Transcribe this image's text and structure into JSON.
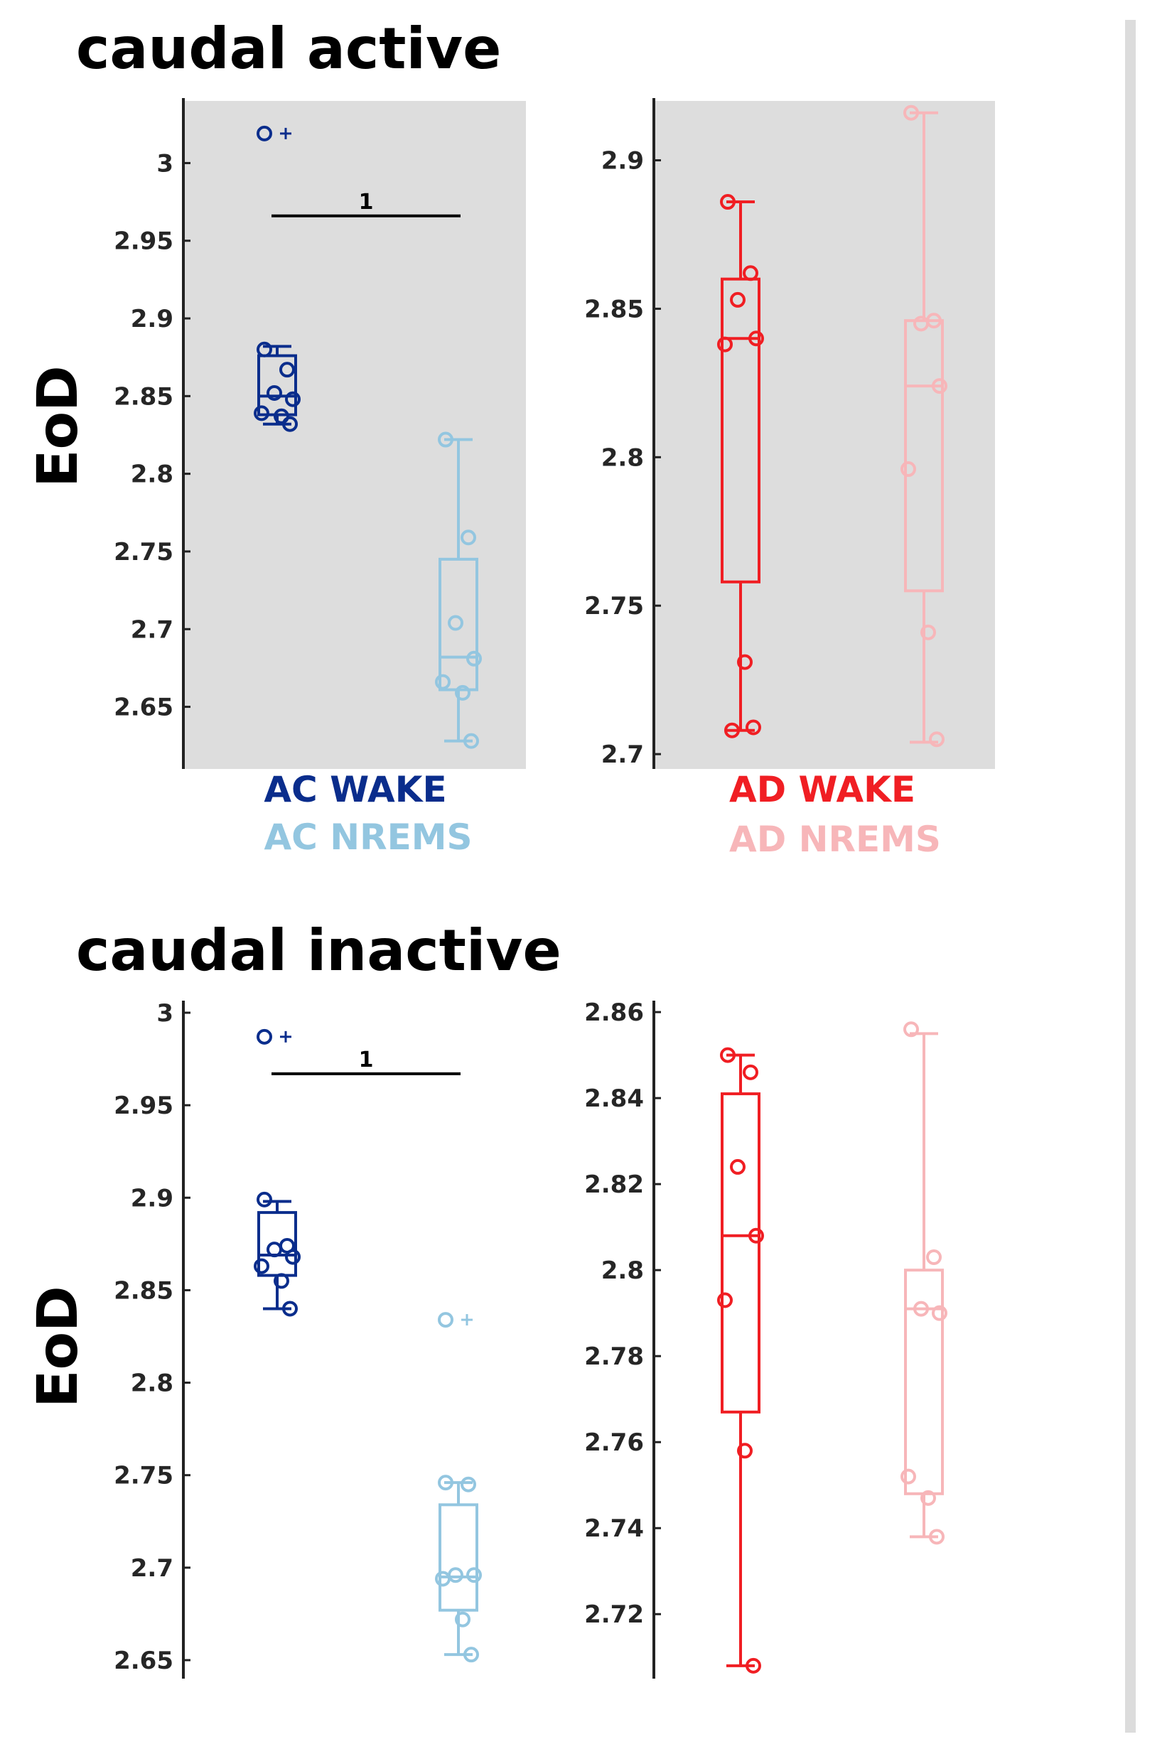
{
  "colors": {
    "ac_wake": "#0a2d8c",
    "ac_nrems": "#93c6e0",
    "ad_wake": "#f01e23",
    "ad_nrems": "#f7b6b9",
    "panel_bg": "#dddddd",
    "divider": "#dcdcdc"
  },
  "chart_data": [
    {
      "type": "box",
      "panel_title": "caudal active",
      "ylabel": "EoD",
      "shaded": true,
      "ylim": [
        2.61,
        3.04
      ],
      "yticks": [
        2.65,
        2.7,
        2.75,
        2.8,
        2.85,
        2.9,
        2.95,
        3
      ],
      "ytick_labels": [
        "2.65",
        "2.7",
        "2.75",
        "2.8",
        "2.85",
        "2.9",
        "2.95",
        "3"
      ],
      "series": [
        {
          "name": "AC WAKE",
          "color": "ac_wake",
          "q1": 2.838,
          "median": 2.85,
          "q3": 2.876,
          "whisker_low": 2.832,
          "whisker_high": 2.882,
          "points": [
            2.88,
            2.867,
            2.852,
            2.848,
            2.839,
            2.837,
            2.832
          ],
          "outliers": [
            3.019
          ]
        },
        {
          "name": "AC NREMS",
          "color": "ac_nrems",
          "q1": 2.661,
          "median": 2.682,
          "q3": 2.745,
          "whisker_low": 2.628,
          "whisker_high": 2.822,
          "points": [
            2.822,
            2.759,
            2.704,
            2.681,
            2.666,
            2.659,
            2.628
          ],
          "outliers": []
        }
      ],
      "significance": {
        "label": "1",
        "y": 2.966
      }
    },
    {
      "type": "box",
      "panel_title": "",
      "shaded": true,
      "ylim": [
        2.695,
        2.92
      ],
      "yticks": [
        2.7,
        2.75,
        2.8,
        2.85,
        2.9
      ],
      "ytick_labels": [
        "2.7",
        "2.75",
        "2.8",
        "2.85",
        "2.9"
      ],
      "series": [
        {
          "name": "AD WAKE",
          "color": "ad_wake",
          "q1": 2.758,
          "median": 2.84,
          "q3": 2.86,
          "whisker_low": 2.708,
          "whisker_high": 2.886,
          "points": [
            2.886,
            2.862,
            2.853,
            2.84,
            2.838,
            2.731,
            2.709,
            2.708
          ],
          "outliers": []
        },
        {
          "name": "AD NREMS",
          "color": "ad_nrems",
          "q1": 2.755,
          "median": 2.824,
          "q3": 2.846,
          "whisker_low": 2.704,
          "whisker_high": 2.916,
          "points": [
            2.916,
            2.846,
            2.845,
            2.824,
            2.796,
            2.741,
            2.705
          ],
          "outliers": []
        }
      ]
    },
    {
      "type": "box",
      "panel_title": "caudal inactive",
      "ylabel": "EoD",
      "shaded": false,
      "ylim": [
        2.64,
        3.005
      ],
      "yticks": [
        2.65,
        2.7,
        2.75,
        2.8,
        2.85,
        2.9,
        2.95,
        3
      ],
      "ytick_labels": [
        "2.65",
        "2.7",
        "2.75",
        "2.8",
        "2.85",
        "2.9",
        "2.95",
        "3"
      ],
      "series": [
        {
          "name": "AC WAKE",
          "color": "ac_wake",
          "q1": 2.858,
          "median": 2.869,
          "q3": 2.892,
          "whisker_low": 2.84,
          "whisker_high": 2.898,
          "points": [
            2.899,
            2.874,
            2.872,
            2.868,
            2.863,
            2.855,
            2.84
          ],
          "outliers": [
            2.987
          ]
        },
        {
          "name": "AC NREMS",
          "color": "ac_nrems",
          "q1": 2.677,
          "median": 2.695,
          "q3": 2.734,
          "whisker_low": 2.653,
          "whisker_high": 2.746,
          "points": [
            2.746,
            2.745,
            2.696,
            2.696,
            2.694,
            2.672,
            2.653
          ],
          "outliers": [
            2.834
          ]
        }
      ],
      "significance": {
        "label": "1",
        "y": 2.967
      }
    },
    {
      "type": "box",
      "panel_title": "",
      "shaded": false,
      "ylim": [
        2.705,
        2.862
      ],
      "yticks": [
        2.72,
        2.74,
        2.76,
        2.78,
        2.8,
        2.82,
        2.84,
        2.86
      ],
      "ytick_labels": [
        "2.72",
        "2.74",
        "2.76",
        "2.78",
        "2.8",
        "2.82",
        "2.84",
        "2.86"
      ],
      "series": [
        {
          "name": "AD WAKE",
          "color": "ad_wake",
          "q1": 2.767,
          "median": 2.808,
          "q3": 2.841,
          "whisker_low": 2.708,
          "whisker_high": 2.85,
          "points": [
            2.85,
            2.846,
            2.824,
            2.808,
            2.793,
            2.758,
            2.708
          ],
          "outliers": []
        },
        {
          "name": "AD NREMS",
          "color": "ad_nrems",
          "q1": 2.748,
          "median": 2.791,
          "q3": 2.8,
          "whisker_low": 2.738,
          "whisker_high": 2.855,
          "points": [
            2.856,
            2.803,
            2.791,
            2.79,
            2.752,
            2.747,
            2.738
          ],
          "outliers": []
        }
      ]
    }
  ]
}
